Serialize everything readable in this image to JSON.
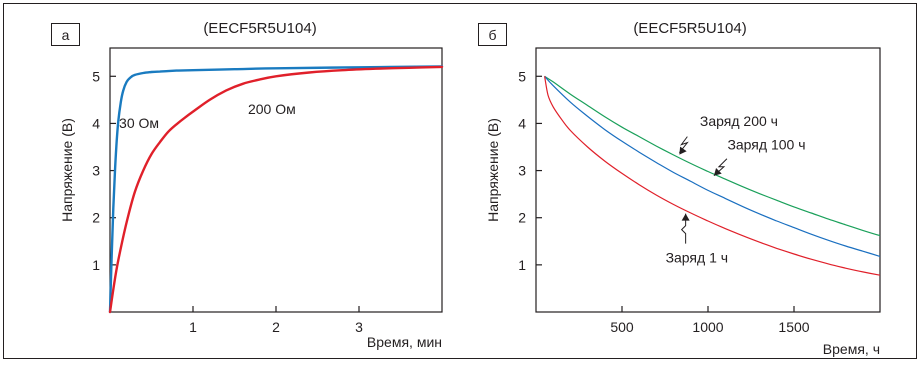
{
  "chart_data": [
    {
      "id": "a",
      "type": "line",
      "panel_label": "а",
      "title": "(EECF5R5U104)",
      "xlabel": "Время, мин",
      "ylabel": "Напряжение (В)",
      "xlim": [
        0,
        4
      ],
      "ylim": [
        0,
        5.6
      ],
      "xticks": [
        1,
        2,
        3
      ],
      "yticks": [
        1,
        2,
        3,
        4,
        5
      ],
      "grid": false,
      "colors": {
        "30 Ом": "#1a7bc0",
        "200 Ом": "#e0202a"
      },
      "series": [
        {
          "name": "30 Ом",
          "x": [
            0,
            0.02,
            0.04,
            0.06,
            0.08,
            0.1,
            0.13,
            0.16,
            0.2,
            0.25,
            0.3,
            0.4,
            0.5,
            0.6,
            0.7,
            0.8,
            1.0,
            1.5,
            2.0,
            3.0,
            4.0
          ],
          "y": [
            0.0,
            1.2,
            2.2,
            3.0,
            3.6,
            4.05,
            4.45,
            4.7,
            4.88,
            4.98,
            5.03,
            5.07,
            5.09,
            5.1,
            5.11,
            5.12,
            5.13,
            5.15,
            5.17,
            5.19,
            5.21
          ]
        },
        {
          "name": "200 Ом",
          "x": [
            0,
            0.05,
            0.1,
            0.2,
            0.3,
            0.4,
            0.5,
            0.6,
            0.7,
            0.8,
            0.9,
            1.0,
            1.2,
            1.4,
            1.6,
            1.8,
            2.0,
            2.4,
            2.8,
            3.2,
            3.6,
            4.0
          ],
          "y": [
            0.0,
            0.6,
            1.1,
            1.9,
            2.55,
            3.0,
            3.35,
            3.6,
            3.82,
            3.98,
            4.12,
            4.25,
            4.5,
            4.7,
            4.84,
            4.93,
            5.0,
            5.08,
            5.13,
            5.16,
            5.18,
            5.2
          ]
        }
      ],
      "annotations": [
        {
          "text": "30 Ом",
          "x": 0.35,
          "y": 3.9
        },
        {
          "text": "200 Ом",
          "x": 1.95,
          "y": 4.2
        }
      ]
    },
    {
      "id": "b",
      "type": "line",
      "panel_label": "б",
      "title": "(EECF5R5U104)",
      "xlabel": "Время, ч",
      "ylabel": "Напряжение (В)",
      "xlim": [
        0,
        2000
      ],
      "ylim": [
        0,
        5.6
      ],
      "xticks": [
        500,
        1000,
        1500
      ],
      "yticks": [
        1,
        2,
        3,
        4,
        5
      ],
      "grid": false,
      "colors": {
        "Заряд 200 ч": "#1aa05a",
        "Заряд 100 ч": "#1a6fc0",
        "Заряд 1 ч": "#e0202a"
      },
      "series": [
        {
          "name": "Заряд 200 ч",
          "x": [
            50,
            100,
            200,
            300,
            400,
            500,
            600,
            700,
            800,
            900,
            1000,
            1100,
            1200,
            1300,
            1400,
            1500,
            1600,
            1700,
            1800,
            1900,
            2000
          ],
          "y": [
            5.0,
            4.88,
            4.62,
            4.38,
            4.14,
            3.92,
            3.72,
            3.52,
            3.33,
            3.15,
            2.98,
            2.82,
            2.66,
            2.51,
            2.37,
            2.23,
            2.1,
            1.97,
            1.85,
            1.73,
            1.62
          ]
        },
        {
          "name": "Заряд 100 ч",
          "x": [
            50,
            100,
            200,
            300,
            400,
            500,
            600,
            700,
            800,
            900,
            1000,
            1100,
            1200,
            1300,
            1400,
            1500,
            1600,
            1700,
            1800,
            1900,
            2000
          ],
          "y": [
            5.0,
            4.8,
            4.45,
            4.15,
            3.87,
            3.62,
            3.39,
            3.17,
            2.96,
            2.77,
            2.58,
            2.41,
            2.24,
            2.08,
            1.93,
            1.79,
            1.65,
            1.52,
            1.4,
            1.29,
            1.18
          ]
        },
        {
          "name": "Заряд 1 ч",
          "x": [
            50,
            70,
            100,
            150,
            200,
            300,
            400,
            500,
            600,
            700,
            800,
            900,
            1000,
            1100,
            1200,
            1300,
            1400,
            1500,
            1600,
            1700,
            1800,
            1900,
            2000
          ],
          "y": [
            5.0,
            4.6,
            4.35,
            4.08,
            3.85,
            3.5,
            3.2,
            2.94,
            2.7,
            2.48,
            2.28,
            2.1,
            1.93,
            1.77,
            1.62,
            1.48,
            1.35,
            1.23,
            1.12,
            1.02,
            0.93,
            0.85,
            0.78
          ]
        }
      ],
      "annotations": [
        {
          "text": "Заряд 200 ч",
          "x": 1180,
          "y": 3.95
        },
        {
          "text": "Заряд 100 ч",
          "x": 1340,
          "y": 3.45
        },
        {
          "text": "Заряд 1 ч",
          "x": 935,
          "y": 1.05
        }
      ]
    }
  ]
}
